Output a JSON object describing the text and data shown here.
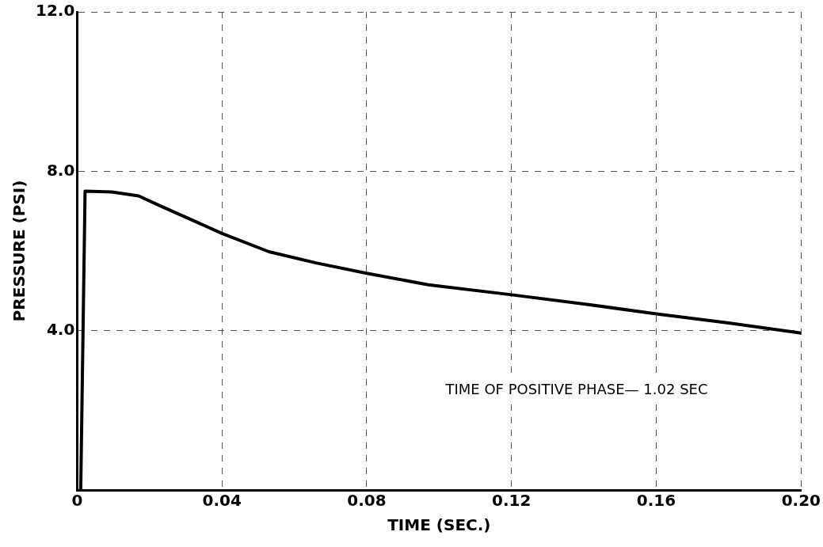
{
  "chart_data": {
    "type": "line",
    "xlabel": "TIME (SEC.)",
    "ylabel": "PRESSURE (PSI)",
    "x": [
      0.001,
      0.0022,
      0.0096,
      0.017,
      0.023,
      0.04,
      0.053,
      0.066,
      0.08,
      0.097,
      0.12,
      0.14,
      0.16,
      0.18,
      0.2
    ],
    "series": [
      {
        "color": "#000000",
        "values": [
          0,
          7.5,
          7.48,
          7.38,
          7.13,
          6.44,
          5.98,
          5.7,
          5.44,
          5.15,
          4.9,
          4.67,
          4.42,
          4.19,
          3.94
        ]
      }
    ],
    "xlim": [
      0,
      0.2
    ],
    "ylim": [
      0,
      12
    ],
    "xticks": [
      {
        "value": 0,
        "label": "0"
      },
      0.04,
      0.08,
      0.12,
      0.16,
      {
        "value": 0.2,
        "label": "0.20"
      }
    ],
    "yticks": [
      {
        "value": 4,
        "label": "4.0"
      },
      {
        "value": 8,
        "label": "8.0"
      },
      {
        "value": 12,
        "label": "12.0"
      }
    ],
    "grid": true,
    "legend": false,
    "marker": "none",
    "line_style": "solid",
    "annotations": [
      "TIME OF POSITIVE PHASE— 1.02 SEC"
    ]
  }
}
